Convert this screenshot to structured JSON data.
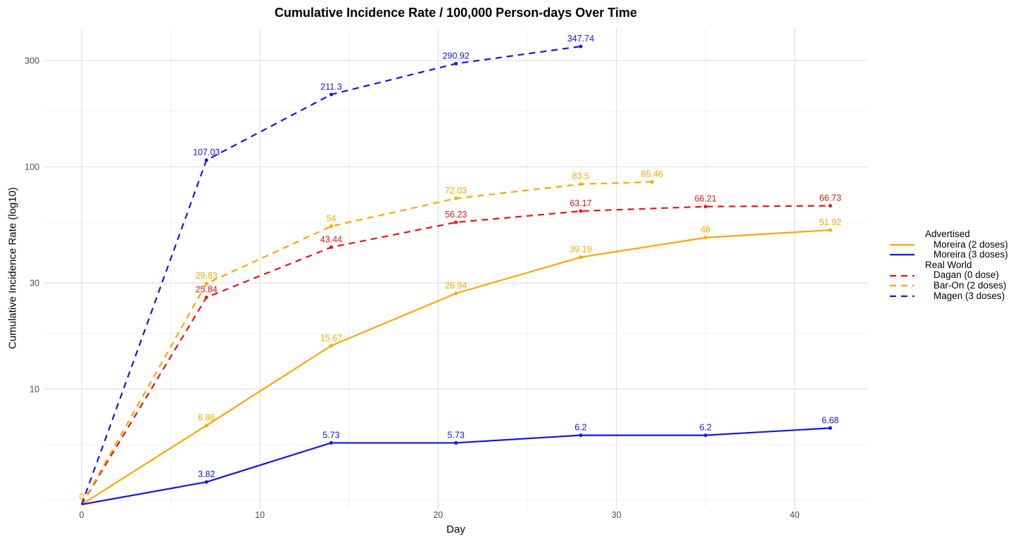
{
  "title": "Cumulative Incidence Rate / 100,000 Person-days Over Time",
  "x_axis": {
    "label": "Day",
    "ticks": [
      0,
      10,
      20,
      30,
      40
    ],
    "minor_ticks": [
      5,
      15,
      25,
      35
    ],
    "range": [
      -2.1,
      44.1
    ]
  },
  "y_axis": {
    "label": "Cumulative Incidence Rate (log10)",
    "scale": "log10",
    "ticks": [
      10,
      30,
      100,
      300
    ],
    "minor_values": [
      3.162,
      5.623,
      17.783,
      56.234,
      177.828
    ],
    "range": [
      2.9,
      420
    ]
  },
  "colors": {
    "orange": "#FFA500",
    "blue": "#1414E6",
    "red": "#EE1111",
    "grid_major": "#E0E0E0",
    "grid_minor": "#F2F2F2",
    "tick_text": "#4D4D4D"
  },
  "legend": {
    "groups": [
      {
        "header": "Advertised",
        "items": [
          {
            "label": "Moreira (2 doses)",
            "color": "#FFA500",
            "style": "solid"
          },
          {
            "label": "Moreira (3 doses)",
            "color": "#1414E6",
            "style": "solid"
          }
        ]
      },
      {
        "header": "Real World",
        "items": [
          {
            "label": "Dagan (0 dose)",
            "color": "#EE1111",
            "style": "dashed"
          },
          {
            "label": "Bar-On (2 doses)",
            "color": "#FFA500",
            "style": "dashed"
          },
          {
            "label": "Magen (3 doses)",
            "color": "#1414E6",
            "style": "dashed"
          }
        ]
      }
    ]
  },
  "chart_data": {
    "type": "line",
    "title": "Cumulative Incidence Rate / 100,000 Person-days Over Time",
    "xlabel": "Day",
    "ylabel": "Cumulative Incidence Rate (log10)",
    "xlim": [
      -2.1,
      44.1
    ],
    "ylim_log10": [
      2.9,
      420
    ],
    "grid": true,
    "legend_position": "right",
    "series": [
      {
        "name": "Moreira (2 doses)",
        "group": "Advertised",
        "color": "#FFA500",
        "style": "solid",
        "x": [
          0,
          7,
          14,
          21,
          28,
          35,
          42
        ],
        "y": [
          0,
          6.86,
          15.67,
          26.94,
          39.19,
          48,
          51.92
        ],
        "labels": [
          "0",
          "6.86",
          "15.67",
          "26.94",
          "39.19",
          "48",
          "51.92"
        ]
      },
      {
        "name": "Moreira (3 doses)",
        "group": "Advertised",
        "color": "#1414E6",
        "style": "solid",
        "x": [
          0,
          7,
          14,
          21,
          28,
          35,
          42
        ],
        "y": [
          0,
          3.82,
          5.73,
          5.73,
          6.2,
          6.2,
          6.68
        ],
        "labels": [
          "",
          "3.82",
          "5.73",
          "5.73",
          "6.2",
          "6.2",
          "6.68"
        ]
      },
      {
        "name": "Dagan (0 dose)",
        "group": "Real World",
        "color": "#EE1111",
        "style": "dashed",
        "x": [
          0,
          7,
          14,
          21,
          28,
          35,
          42
        ],
        "y": [
          0,
          25.84,
          43.44,
          56.23,
          63.17,
          66.21,
          66.73
        ],
        "labels": [
          "",
          "25.84",
          "43.44",
          "56.23",
          "63.17",
          "66.21",
          "66.73"
        ]
      },
      {
        "name": "Bar-On (2 doses)",
        "group": "Real World",
        "color": "#FFA500",
        "style": "dashed",
        "x": [
          0,
          7,
          14,
          21,
          28,
          32
        ],
        "y": [
          0,
          29.83,
          54,
          72.03,
          83.5,
          85.46
        ],
        "labels": [
          "",
          "29.83",
          "54",
          "72.03",
          "83.5",
          "85.46"
        ]
      },
      {
        "name": "Magen (3 doses)",
        "group": "Real World",
        "color": "#1414E6",
        "style": "dashed",
        "x": [
          0,
          7,
          14,
          21,
          28
        ],
        "y": [
          0,
          107.03,
          211.3,
          290.92,
          347.74
        ],
        "labels": [
          "",
          "107.03",
          "211.3",
          "290.92",
          "347.74"
        ]
      }
    ]
  }
}
